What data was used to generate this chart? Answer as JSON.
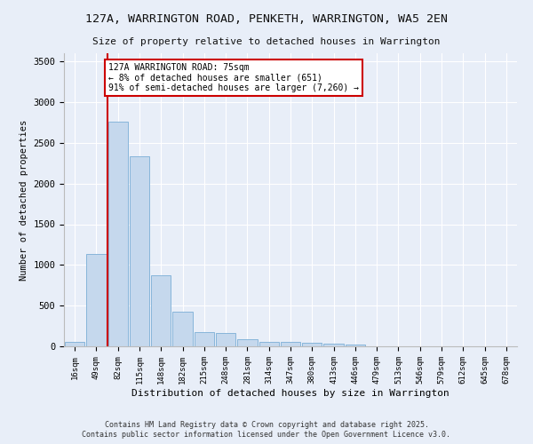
{
  "title": "127A, WARRINGTON ROAD, PENKETH, WARRINGTON, WA5 2EN",
  "subtitle": "Size of property relative to detached houses in Warrington",
  "xlabel": "Distribution of detached houses by size in Warrington",
  "ylabel": "Number of detached properties",
  "bar_color": "#c5d8ed",
  "bar_edge_color": "#7aaed6",
  "background_color": "#e8eef8",
  "grid_color": "#ffffff",
  "categories": [
    "16sqm",
    "49sqm",
    "82sqm",
    "115sqm",
    "148sqm",
    "182sqm",
    "215sqm",
    "248sqm",
    "281sqm",
    "314sqm",
    "347sqm",
    "380sqm",
    "413sqm",
    "446sqm",
    "479sqm",
    "513sqm",
    "546sqm",
    "579sqm",
    "612sqm",
    "645sqm",
    "678sqm"
  ],
  "values": [
    50,
    1130,
    2760,
    2330,
    870,
    430,
    170,
    165,
    90,
    60,
    55,
    45,
    30,
    25,
    5,
    5,
    3,
    2,
    1,
    1,
    0
  ],
  "red_line_index": 2,
  "annotation_text": "127A WARRINGTON ROAD: 75sqm\n← 8% of detached houses are smaller (651)\n91% of semi-detached houses are larger (7,260) →",
  "annotation_box_color": "#ffffff",
  "annotation_border_color": "#cc0000",
  "red_line_color": "#cc0000",
  "ylim": [
    0,
    3600
  ],
  "yticks": [
    0,
    500,
    1000,
    1500,
    2000,
    2500,
    3000,
    3500
  ],
  "footer1": "Contains HM Land Registry data © Crown copyright and database right 2025.",
  "footer2": "Contains public sector information licensed under the Open Government Licence v3.0."
}
